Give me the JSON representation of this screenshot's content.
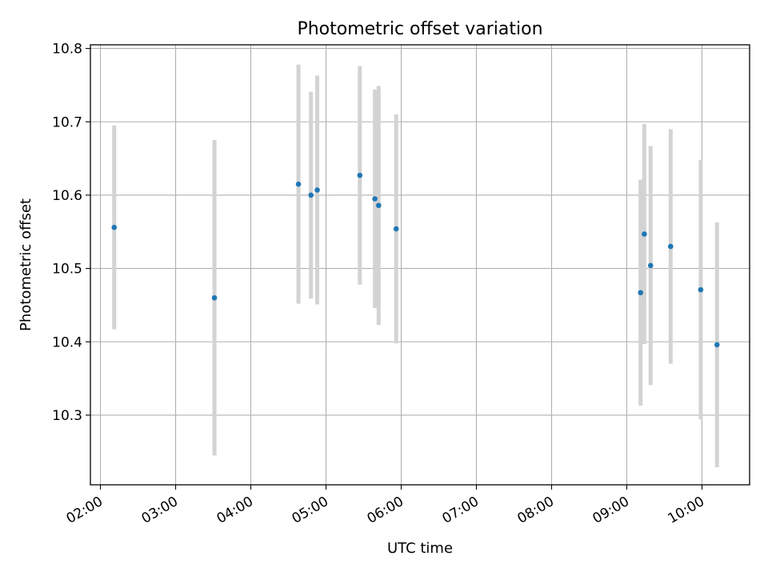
{
  "chart_data": {
    "type": "scatter",
    "title": "Photometric offset variation",
    "xlabel": "UTC time",
    "ylabel": "Photometric offset",
    "x_is_time": true,
    "xlim": [
      "01:52",
      "10:38"
    ],
    "ylim": [
      10.205,
      10.805
    ],
    "x_ticks": [
      "02:00",
      "03:00",
      "04:00",
      "05:00",
      "06:00",
      "07:00",
      "08:00",
      "09:00",
      "10:00"
    ],
    "y_ticks": [
      10.3,
      10.4,
      10.5,
      10.6,
      10.7,
      10.8
    ],
    "y_tick_labels": [
      "10.3",
      "10.4",
      "10.5",
      "10.6",
      "10.7",
      "10.8"
    ],
    "grid": true,
    "marker_color": "#1f77b4",
    "errorbar_color": "#d3d3d3",
    "points": [
      {
        "x": "02:11",
        "y": 10.556,
        "err": 0.139
      },
      {
        "x": "03:31",
        "y": 10.46,
        "err": 0.215
      },
      {
        "x": "04:38",
        "y": 10.615,
        "err": 0.163
      },
      {
        "x": "04:48",
        "y": 10.6,
        "err": 0.141
      },
      {
        "x": "04:53",
        "y": 10.607,
        "err": 0.156
      },
      {
        "x": "05:27",
        "y": 10.627,
        "err": 0.149
      },
      {
        "x": "05:39",
        "y": 10.595,
        "err": 0.149
      },
      {
        "x": "05:42",
        "y": 10.586,
        "err": 0.163
      },
      {
        "x": "05:56",
        "y": 10.554,
        "err": 0.156
      },
      {
        "x": "09:11",
        "y": 10.467,
        "err": 0.154
      },
      {
        "x": "09:14",
        "y": 10.547,
        "err": 0.15
      },
      {
        "x": "09:19",
        "y": 10.504,
        "err": 0.163
      },
      {
        "x": "09:35",
        "y": 10.53,
        "err": 0.16
      },
      {
        "x": "09:59",
        "y": 10.471,
        "err": 0.177
      },
      {
        "x": "10:12",
        "y": 10.396,
        "err": 0.167
      }
    ]
  }
}
